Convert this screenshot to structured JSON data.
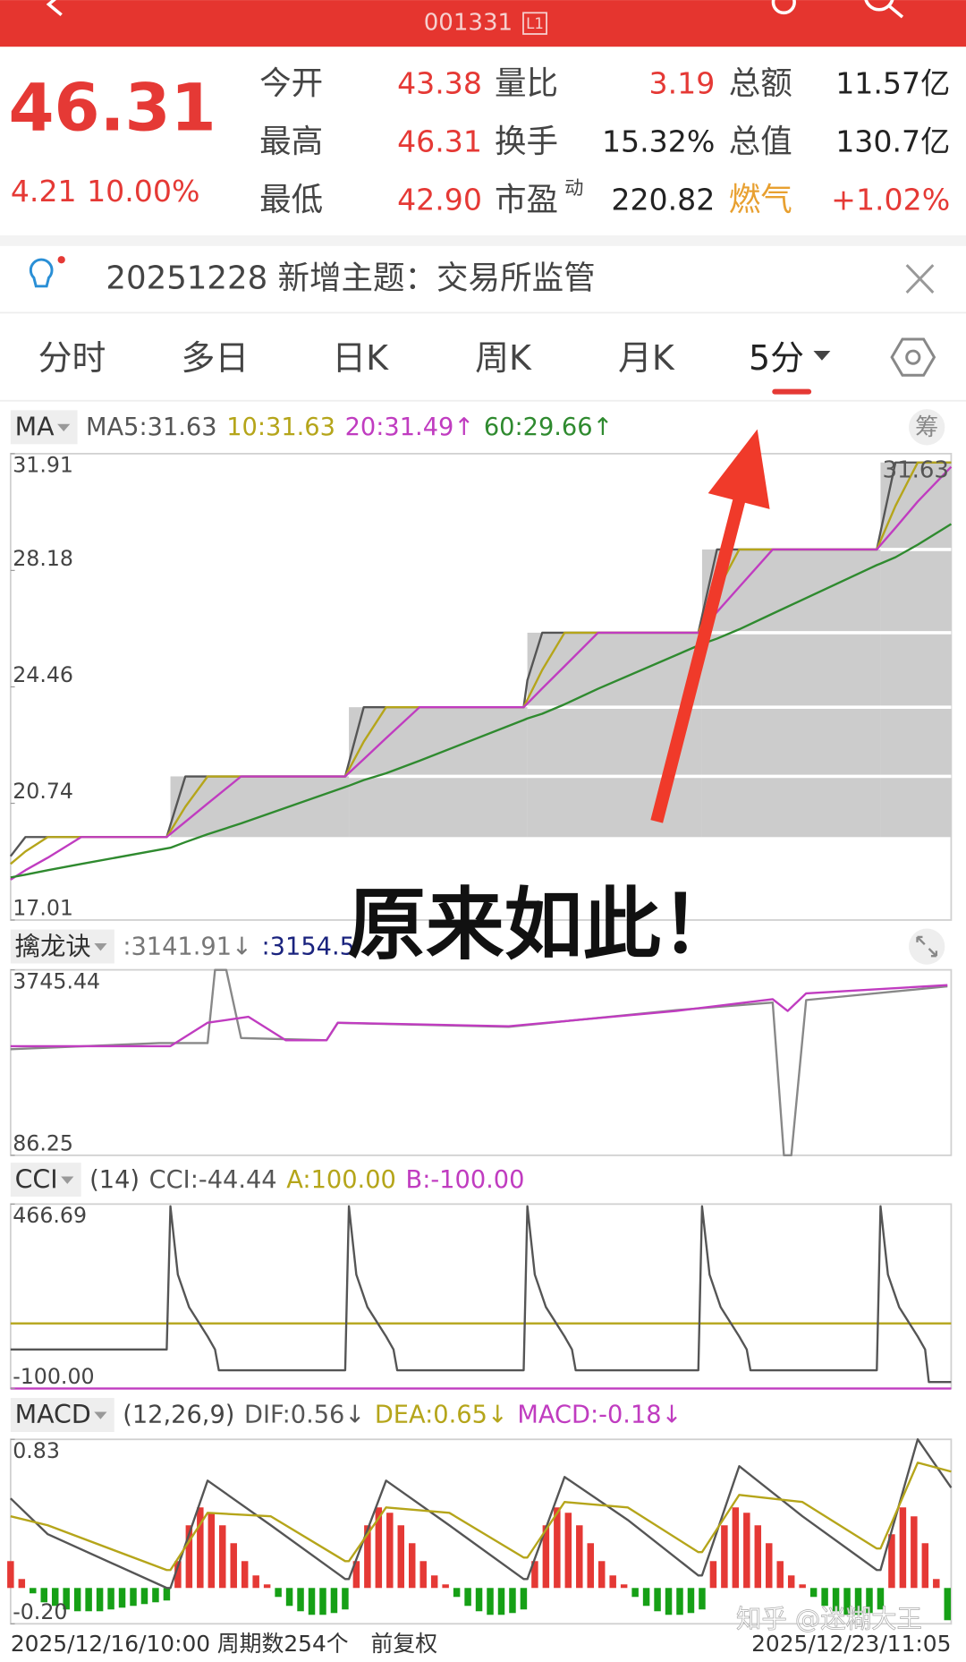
{
  "header": {
    "code": "001331",
    "level": "L1"
  },
  "quote": {
    "price": "46.31",
    "change": "4.21",
    "change_pct": "10.00%",
    "rows": [
      [
        {
          "label": "今开",
          "value": "43.38"
        },
        {
          "label": "量比",
          "value": "3.19"
        },
        {
          "label": "总额",
          "value": "11.57亿"
        }
      ],
      [
        {
          "label": "最高",
          "value": "46.31"
        },
        {
          "label": "换手",
          "value": "15.32%"
        },
        {
          "label": "总值",
          "value": "130.7亿"
        }
      ],
      [
        {
          "label": "最低",
          "value": "42.90"
        },
        {
          "label": "市盈",
          "sup": "动",
          "value": "220.82"
        },
        {
          "label": "燃气",
          "value": "+1.02%"
        }
      ]
    ]
  },
  "notice": {
    "text": "20251228 新增主题：交易所监管"
  },
  "tabs": [
    "分时",
    "多日",
    "日K",
    "周K",
    "月K",
    "5分"
  ],
  "chips_button": "筹",
  "charts": [
    {
      "type": "line",
      "indicator": "MA",
      "xlim": [
        0,
        253
      ],
      "ylim": [
        17.01,
        31.91
      ],
      "yticks": [
        31.91,
        28.18,
        24.46,
        20.74,
        17.01
      ],
      "last_label": "31.63",
      "steps": {
        "x": [
          0,
          43,
          91,
          139,
          186,
          234
        ],
        "values": [
          19.66,
          21.6,
          23.81,
          26.19,
          28.85,
          31.63
        ],
        "color": "#cccccc"
      },
      "x": [
        0,
        4,
        10,
        19,
        42,
        43,
        47,
        53,
        62,
        90,
        91,
        95,
        101,
        110,
        138,
        139,
        143,
        149,
        158,
        185,
        186,
        190,
        196,
        205,
        233,
        234,
        238,
        244,
        253
      ],
      "series": [
        {
          "name": "MA5:31.63",
          "color": "#555555",
          "values": [
            19.05,
            19.66,
            19.66,
            19.66,
            19.66,
            20.05,
            21.6,
            21.6,
            21.6,
            21.6,
            22.04,
            23.81,
            23.81,
            23.81,
            23.81,
            24.67,
            26.19,
            26.19,
            26.19,
            26.19,
            26.72,
            28.85,
            28.85,
            28.85,
            28.85,
            29.41,
            31.63,
            31.63,
            31.63
          ]
        },
        {
          "name": "10:31.63",
          "color": "#b5a51a",
          "values": [
            18.8,
            19.2,
            19.66,
            19.66,
            19.66,
            19.85,
            20.63,
            21.6,
            21.6,
            21.6,
            21.82,
            22.71,
            23.81,
            23.81,
            23.81,
            24.05,
            25.0,
            26.19,
            26.19,
            26.19,
            26.46,
            27.52,
            28.85,
            28.85,
            28.85,
            29.13,
            30.24,
            31.63,
            31.63
          ]
        },
        {
          "name": "20:31.49↑",
          "color": "#c03cc0",
          "values": [
            18.3,
            18.6,
            19.0,
            19.66,
            19.66,
            19.76,
            20.15,
            20.73,
            21.6,
            21.6,
            21.71,
            22.15,
            22.82,
            23.81,
            23.81,
            23.93,
            24.41,
            25.12,
            26.19,
            26.19,
            26.32,
            26.85,
            27.65,
            28.85,
            28.85,
            28.99,
            29.54,
            30.38,
            31.49
          ]
        },
        {
          "name": "60:29.66↑",
          "color": "#2f8a2f",
          "values": [
            18.37,
            18.46,
            18.6,
            18.8,
            19.3,
            19.32,
            19.5,
            19.75,
            20.1,
            21.26,
            21.3,
            21.48,
            21.7,
            22.1,
            23.4,
            23.45,
            23.6,
            23.9,
            24.4,
            25.78,
            25.83,
            26.0,
            26.3,
            26.8,
            28.35,
            28.4,
            28.6,
            29.0,
            29.66
          ]
        }
      ]
    },
    {
      "type": "line",
      "indicator": "擒龙诀",
      "xlim": [
        0,
        253
      ],
      "ylim": [
        86.25,
        3745.44
      ],
      "yticks": [
        3745.44,
        86.25
      ],
      "legend": [
        {
          "text": ":3141.91↓",
          "color": "#777777"
        },
        {
          "text": ":3154.5",
          "color": "#1a237e"
        }
      ],
      "series": [
        {
          "color": "#888888",
          "x": [
            0,
            40,
            53,
            55,
            58,
            62,
            85,
            88,
            134,
            179,
            205,
            208,
            210,
            214,
            252
          ],
          "values": [
            2180,
            2300,
            2300,
            3745,
            3745,
            2400,
            2356,
            2700,
            2620,
            2950,
            3100,
            86,
            86,
            3150,
            3420
          ]
        },
        {
          "color": "#c03cc0",
          "x": [
            0,
            43,
            53,
            64,
            74,
            85,
            88,
            134,
            179,
            205,
            209,
            214,
            252
          ],
          "values": [
            2240,
            2240,
            2703,
            2819,
            2356,
            2356,
            2703,
            2633,
            2935,
            3166,
            2935,
            3282,
            3444
          ]
        }
      ]
    },
    {
      "type": "line",
      "indicator": "CCI",
      "params": "(14)",
      "xlim": [
        0,
        253
      ],
      "ylim": [
        -100,
        466.69
      ],
      "yticks": [
        466.69,
        {
          "value": -100,
          "label": "-100.00"
        }
      ],
      "ref_lines": [
        {
          "name": "A:100.00",
          "value": 100,
          "color": "#b5a51a"
        },
        {
          "name": "B:-100.00",
          "value": -100,
          "color": "#c03cc0"
        }
      ],
      "x": [
        0,
        42,
        43,
        45,
        48,
        53,
        55,
        56,
        90,
        91,
        93,
        96,
        101,
        103,
        104,
        138,
        139,
        141,
        144,
        149,
        151,
        152,
        185,
        186,
        188,
        191,
        196,
        198,
        199,
        233,
        234,
        236,
        239,
        244,
        246,
        247,
        253
      ],
      "series": [
        {
          "name": "CCI:-44.44",
          "color": "#555555",
          "values": [
            20,
            20,
            460,
            250,
            150,
            60,
            20,
            -44,
            -44,
            460,
            250,
            150,
            60,
            20,
            -44,
            -44,
            460,
            250,
            150,
            60,
            20,
            -44,
            -44,
            460,
            250,
            150,
            60,
            20,
            -44,
            -44,
            460,
            250,
            150,
            60,
            20,
            -80,
            -80
          ]
        }
      ]
    },
    {
      "type": "line",
      "indicator": "MACD",
      "params": "(12,26,9)",
      "xlim": [
        0,
        253
      ],
      "ylim": [
        -0.2,
        0.83
      ],
      "yticks": [
        0.83,
        {
          "value": -0.2,
          "label": "-0.20"
        }
      ],
      "x": [
        0,
        10,
        42,
        43,
        53,
        70,
        90,
        91,
        101,
        118,
        138,
        139,
        149,
        166,
        185,
        186,
        196,
        213,
        233,
        234,
        244,
        253
      ],
      "series": [
        {
          "name": "DIF:0.56↓",
          "color": "#555555",
          "values": [
            0.5,
            0.3,
            0.0,
            0.0,
            0.6,
            0.35,
            0.05,
            0.05,
            0.6,
            0.35,
            0.05,
            0.05,
            0.62,
            0.38,
            0.07,
            0.07,
            0.68,
            0.4,
            0.1,
            0.1,
            0.83,
            0.56
          ]
        },
        {
          "name": "DEA:0.65↓",
          "color": "#b5a51a",
          "values": [
            0.4,
            0.35,
            0.1,
            0.1,
            0.42,
            0.4,
            0.15,
            0.15,
            0.45,
            0.42,
            0.17,
            0.17,
            0.48,
            0.45,
            0.2,
            0.2,
            0.52,
            0.48,
            0.22,
            0.22,
            0.7,
            0.65
          ]
        }
      ],
      "histogram": {
        "name": "MACD:-0.18↓",
        "legend_color": "#c03cc0",
        "up_color": "#e53935",
        "down_color": "#16a016",
        "x": [
          0,
          3,
          6,
          9,
          12,
          15,
          18,
          21,
          24,
          27,
          30,
          33,
          36,
          39,
          42,
          45,
          48,
          51,
          54,
          57,
          60,
          63,
          66,
          69,
          72,
          75,
          78,
          81,
          84,
          87,
          90,
          93,
          96,
          99,
          102,
          105,
          108,
          111,
          114,
          117,
          120,
          123,
          126,
          129,
          132,
          135,
          138,
          141,
          144,
          147,
          150,
          153,
          156,
          159,
          162,
          165,
          168,
          171,
          174,
          177,
          180,
          183,
          186,
          189,
          192,
          195,
          198,
          201,
          204,
          207,
          210,
          213,
          216,
          219,
          222,
          225,
          228,
          231,
          234,
          237,
          240,
          243,
          246,
          249,
          252
        ],
        "values": [
          0.15,
          0.05,
          -0.03,
          -0.08,
          -0.1,
          -0.12,
          -0.13,
          -0.13,
          -0.13,
          -0.12,
          -0.11,
          -0.1,
          -0.09,
          -0.08,
          -0.07,
          0.15,
          0.35,
          0.45,
          0.42,
          0.35,
          0.25,
          0.15,
          0.07,
          0.02,
          -0.05,
          -0.1,
          -0.13,
          -0.15,
          -0.15,
          -0.14,
          -0.12,
          0.15,
          0.35,
          0.45,
          0.42,
          0.35,
          0.25,
          0.15,
          0.07,
          0.02,
          -0.05,
          -0.1,
          -0.13,
          -0.15,
          -0.15,
          -0.14,
          -0.12,
          0.15,
          0.35,
          0.45,
          0.42,
          0.35,
          0.25,
          0.15,
          0.07,
          0.02,
          -0.05,
          -0.1,
          -0.13,
          -0.15,
          -0.15,
          -0.14,
          -0.12,
          0.15,
          0.35,
          0.45,
          0.42,
          0.35,
          0.25,
          0.15,
          0.07,
          0.02,
          -0.05,
          -0.1,
          -0.13,
          -0.15,
          -0.15,
          -0.14,
          -0.12,
          0.3,
          0.45,
          0.4,
          0.25,
          0.05,
          -0.18
        ]
      }
    }
  ],
  "annotation": "原来如此！",
  "footer": {
    "start": "2025/12/16/10:00",
    "count": "周期数254个",
    "adjust": "前复权",
    "end": "2025/12/23/11:05"
  },
  "watermark": "知乎 @迷糊大王"
}
